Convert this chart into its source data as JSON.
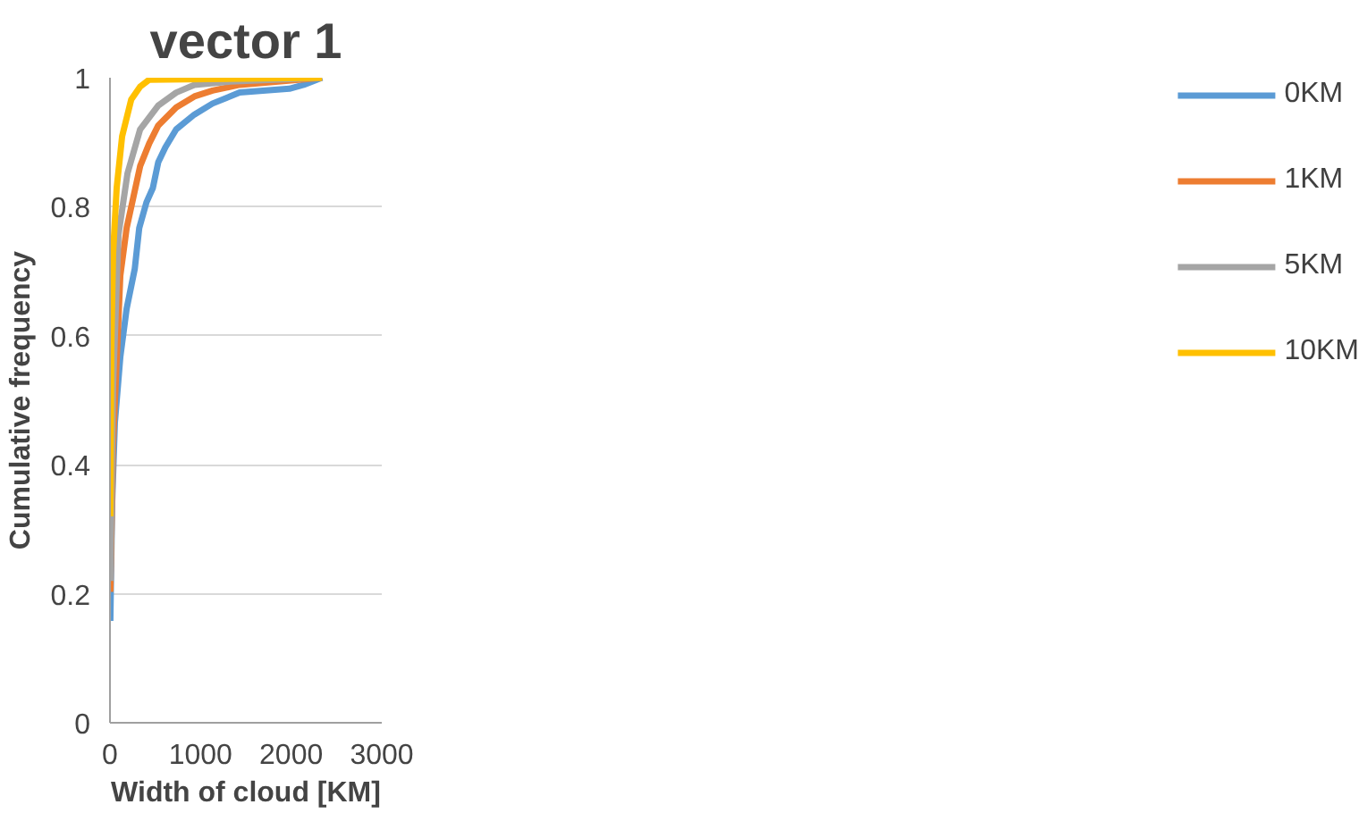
{
  "chart_data": {
    "type": "line",
    "title": "vector 1",
    "xlabel": "Width of cloud [KM]",
    "ylabel": "Cumulative frequency",
    "xlim": [
      0,
      3000
    ],
    "xticks": [
      0,
      1000,
      2000,
      3000
    ],
    "ylim": [
      0,
      1
    ],
    "yticks": [
      0,
      0.2,
      0.4,
      0.6,
      0.8,
      1
    ],
    "grid": "y",
    "legend": "right",
    "marker": "none",
    "line_style": "solid",
    "series": [
      {
        "name": "0KM",
        "color": "#5b9bd5",
        "x": [
          4,
          24,
          54,
          114,
          184,
          274,
          323,
          403,
          473,
          533,
          611,
          731,
          932,
          1132,
          1431,
          1980,
          2138,
          2340
        ],
        "values": [
          0.158,
          0.34,
          0.465,
          0.567,
          0.642,
          0.704,
          0.767,
          0.807,
          0.829,
          0.869,
          0.892,
          0.92,
          0.943,
          0.96,
          0.977,
          0.983,
          0.989,
          1
        ]
      },
      {
        "name": "1KM",
        "color": "#ed7d31",
        "x": [
          4,
          34,
          114,
          184,
          333,
          433,
          533,
          731,
          932,
          1132,
          1431,
          2340
        ],
        "values": [
          0.203,
          0.431,
          0.693,
          0.767,
          0.863,
          0.898,
          0.926,
          0.954,
          0.971,
          0.98,
          0.989,
          1
        ]
      },
      {
        "name": "5KM",
        "color": "#a5a5a5",
        "x": [
          4,
          34,
          94,
          194,
          333,
          533,
          731,
          932,
          1331,
          2340
        ],
        "values": [
          0.22,
          0.522,
          0.757,
          0.852,
          0.92,
          0.957,
          0.977,
          0.989,
          0.994,
          1
        ]
      },
      {
        "name": "10KM",
        "color": "#ffc000",
        "x": [
          4,
          14,
          34,
          74,
          134,
          234,
          333,
          433,
          2340
        ],
        "values": [
          0.32,
          0.58,
          0.727,
          0.829,
          0.909,
          0.966,
          0.986,
          0.997,
          1
        ]
      }
    ]
  }
}
